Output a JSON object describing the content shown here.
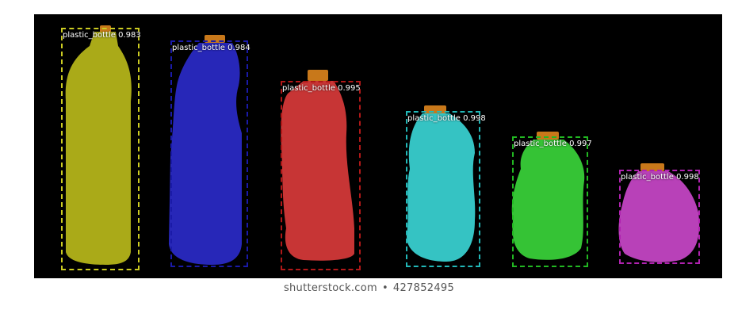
{
  "detections": [
    {
      "label": "plastic_bottle",
      "score": "0.983",
      "text": "plastic_bottle 0.983",
      "color": "#cccc22",
      "fill": "#b8b81a"
    },
    {
      "label": "plastic_bottle",
      "score": "0.984",
      "text": "plastic_bottle 0.984",
      "color": "#1a1aa8",
      "fill": "#2a2ac8"
    },
    {
      "label": "plastic_bottle",
      "score": "0.995",
      "text": "plastic_bottle 0.995",
      "color": "#b01818",
      "fill": "#d83a3a"
    },
    {
      "label": "plastic_bottle",
      "score": "0.998",
      "text": "plastic_bottle 0.998",
      "color": "#22b8b8",
      "fill": "#3ad4d4"
    },
    {
      "label": "plastic_bottle",
      "score": "0.997",
      "text": "plastic_bottle 0.997",
      "color": "#22b822",
      "fill": "#3ad43a"
    },
    {
      "label": "plastic_bottle",
      "score": "0.998",
      "text": "plastic_bottle 0.998",
      "color": "#b022b0",
      "fill": "#c846c8"
    }
  ],
  "cap_color": "#c8781a",
  "footer": {
    "site": "shutterstock.com",
    "separator": "•",
    "image_number": "427852495"
  }
}
